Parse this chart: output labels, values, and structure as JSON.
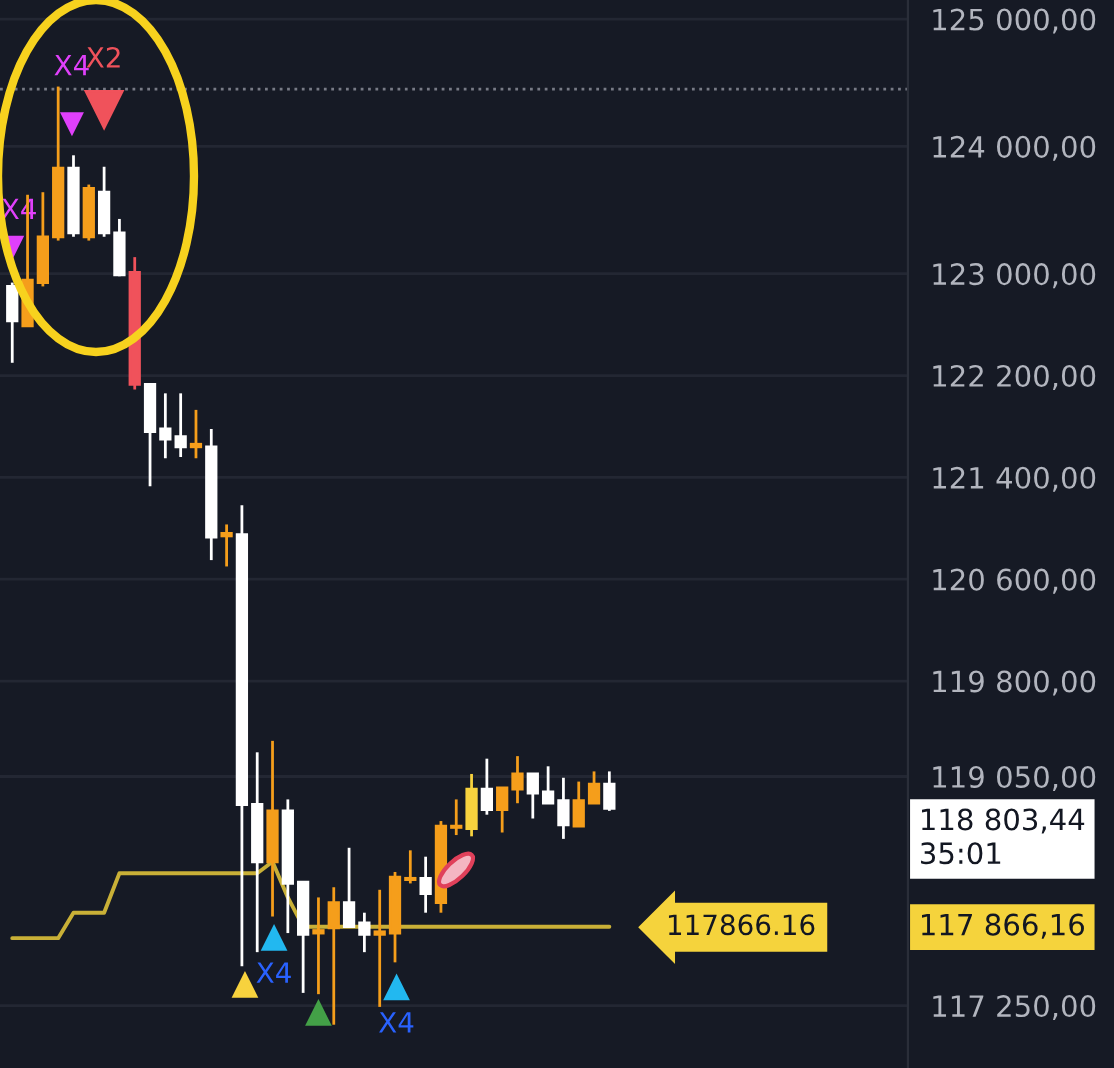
{
  "chart_data": {
    "type": "candlestick",
    "categories": [
      null,
      null,
      null,
      null,
      null,
      null,
      null,
      null,
      null,
      null,
      null,
      null,
      null,
      null,
      null,
      null,
      null,
      null,
      null,
      null,
      null,
      null,
      null,
      null,
      null,
      null,
      null,
      null,
      null,
      null,
      null,
      null,
      null,
      null,
      null,
      null,
      null,
      null,
      null,
      null,
      null,
      null,
      null,
      null,
      null,
      null,
      null,
      null,
      null,
      null,
      null,
      null,
      null,
      null,
      null,
      null,
      null,
      null,
      null
    ],
    "ohlc": [
      [
        122900,
        122930,
        122300,
        122630
      ],
      [
        122590,
        123620,
        122590,
        122950
      ],
      [
        122930,
        123640,
        122900,
        123290
      ],
      [
        123290,
        124470,
        123260,
        123830
      ],
      [
        123830,
        123930,
        123290,
        123320
      ],
      [
        123290,
        123700,
        123260,
        123670
      ],
      [
        123640,
        123840,
        123290,
        123320
      ],
      [
        123320,
        123430,
        122980,
        122990
      ],
      [
        123010,
        123130,
        122090,
        122130
      ],
      [
        122130,
        122130,
        121330,
        121760
      ],
      [
        121780,
        122060,
        121550,
        121700
      ],
      [
        121720,
        122060,
        121560,
        121640
      ],
      [
        121640,
        121930,
        121550,
        121660
      ],
      [
        121640,
        121780,
        120750,
        120930
      ],
      [
        120940,
        121030,
        120700,
        120960
      ],
      [
        120950,
        121180,
        117560,
        118830
      ],
      [
        118830,
        119240,
        117670,
        118380
      ],
      [
        118380,
        119330,
        117950,
        118780
      ],
      [
        118780,
        118870,
        117820,
        118210
      ],
      [
        118220,
        118220,
        117350,
        117810
      ],
      [
        117820,
        118100,
        117340,
        117840
      ],
      [
        117860,
        118180,
        117100,
        118060
      ],
      [
        118060,
        118490,
        117860,
        117870
      ],
      [
        117900,
        117980,
        117670,
        117810
      ],
      [
        117810,
        118160,
        117240,
        117830
      ],
      [
        117820,
        118300,
        117590,
        118260
      ],
      [
        118240,
        118470,
        118210,
        118250
      ],
      [
        118250,
        118420,
        117980,
        118130
      ],
      [
        118060,
        118700,
        117980,
        118660
      ],
      [
        118650,
        118870,
        118590,
        118660
      ],
      [
        118640,
        119070,
        118580,
        118950
      ],
      [
        118950,
        119190,
        118750,
        118790
      ],
      [
        118790,
        118960,
        118610,
        118960
      ],
      [
        118950,
        119210,
        118840,
        119070
      ],
      [
        119070,
        119070,
        118720,
        118920
      ],
      [
        118930,
        119130,
        118840,
        118840
      ],
      [
        118860,
        119040,
        118560,
        118670
      ],
      [
        118660,
        119010,
        118660,
        118860
      ],
      [
        118840,
        119090,
        118840,
        118990
      ],
      [
        118990,
        119090,
        118780,
        118800
      ],
      null,
      null,
      null,
      null,
      null,
      null,
      null,
      null,
      null,
      null,
      null,
      null,
      null,
      null,
      null,
      null,
      null,
      null,
      null
    ],
    "colors": [
      "#ffffff",
      "#f59e1b",
      "#f59e1b",
      "#f59e1b",
      "#ffffff",
      "#f59e1b",
      "#ffffff",
      "#ffffff",
      "#f0525b",
      "#ffffff",
      "#ffffff",
      "#ffffff",
      "#f59e1b",
      "#ffffff",
      "#f59e1b",
      "#ffffff",
      "#ffffff",
      "#f59e1b",
      "#ffffff",
      "#ffffff",
      "#f59e1b",
      "#f59e1b",
      "#ffffff",
      "#ffffff",
      "#f59e1b",
      "#f59e1b",
      "#f59e1b",
      "#ffffff",
      "#f59e1b",
      "#f59e1b",
      "#f7d23e",
      "#ffffff",
      "#f59e1b",
      "#f59e1b",
      "#ffffff",
      "#ffffff",
      "#ffffff",
      "#f59e1b",
      "#f59e1b",
      "#ffffff",
      null,
      null,
      null,
      null,
      null,
      null,
      null,
      null,
      null,
      null,
      null,
      null,
      null,
      null,
      null,
      null,
      null,
      null,
      null
    ],
    "series": [
      {
        "type": "line",
        "color": "#c9b037",
        "values": [
          117780,
          117780,
          117780,
          117780,
          117980,
          117980,
          117980,
          118290,
          118290,
          118290,
          118290,
          118290,
          118290,
          118290,
          118290,
          118290,
          118290,
          118380,
          118100,
          117870,
          117870,
          117870,
          117870,
          117870,
          117870,
          117870,
          117870,
          117870,
          117870,
          117870,
          117870,
          117870,
          117870,
          117870,
          117870,
          117870,
          117870,
          117870,
          117870,
          117870,
          null,
          null,
          null,
          null,
          null,
          null,
          null,
          null,
          null,
          null,
          null,
          null,
          null,
          null,
          null,
          null,
          null,
          null,
          null
        ]
      }
    ],
    "ylim": [
      116760,
      125150
    ],
    "yticks": [
      {
        "value": 125000,
        "label": "125 000,00"
      },
      {
        "value": 124000,
        "label": "124 000,00"
      },
      {
        "value": 123000,
        "label": "123 000,00"
      },
      {
        "value": 122200,
        "label": "122 200,00"
      },
      {
        "value": 121400,
        "label": "121 400,00"
      },
      {
        "value": 120600,
        "label": "120 600,00"
      },
      {
        "value": 119800,
        "label": "119 800,00"
      },
      {
        "value": 119050,
        "label": "119 050,00"
      },
      {
        "value": 117250,
        "label": "117 250,00"
      }
    ],
    "ref_lines": [
      {
        "axis": "y",
        "value": 124450,
        "color": "#787b86",
        "line_style": "dotted"
      }
    ],
    "annotations": [
      "X2",
      "X4",
      "X4",
      "X4",
      "X4",
      "117866.16",
      "117 866,16",
      "118 803,44\n35:01"
    ],
    "grid": "y",
    "tick_labels": "y"
  }
}
